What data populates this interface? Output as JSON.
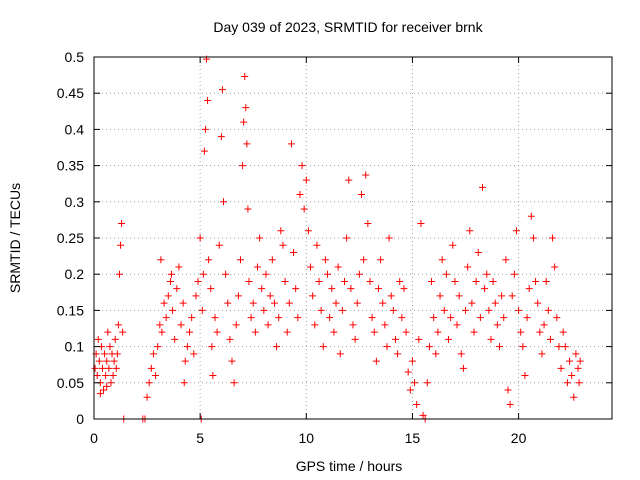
{
  "chart_data": {
    "type": "scatter",
    "title": "Day 039 of 2023, SRMTID for receiver brnk",
    "xlabel": "GPS time / hours",
    "ylabel": "SRMTID / TECUs",
    "xlim": [
      0,
      24.4
    ],
    "ylim": [
      0,
      0.5
    ],
    "xticks": [
      0,
      5,
      10,
      15,
      20
    ],
    "xtick_labels": [
      "0",
      "5",
      "10",
      "15",
      "20"
    ],
    "yticks": [
      0,
      0.05,
      0.1,
      0.15,
      0.2,
      0.25,
      0.3,
      0.35,
      0.4,
      0.45,
      0.5
    ],
    "ytick_labels": [
      "0",
      "0.05",
      "0.1",
      "0.15",
      "0.2",
      "0.25",
      "0.3",
      "0.35",
      "0.4",
      "0.45",
      "0.5"
    ],
    "grid": true,
    "marker": "+",
    "color": "#ff0000",
    "series": [
      {
        "name": "SRMTID",
        "points": [
          [
            0.05,
            0.07
          ],
          [
            0.1,
            0.09
          ],
          [
            0.15,
            0.06
          ],
          [
            0.2,
            0.11
          ],
          [
            0.25,
            0.08
          ],
          [
            0.3,
            0.05
          ],
          [
            0.35,
            0.1
          ],
          [
            0.4,
            0.07
          ],
          [
            0.45,
            0.04
          ],
          [
            0.5,
            0.09
          ],
          [
            0.55,
            0.06
          ],
          [
            0.6,
            0.08
          ],
          [
            0.65,
            0.12
          ],
          [
            0.7,
            0.07
          ],
          [
            0.75,
            0.1
          ],
          [
            0.8,
            0.05
          ],
          [
            0.85,
            0.09
          ],
          [
            0.9,
            0.06
          ],
          [
            0.95,
            0.08
          ],
          [
            1.0,
            0.11
          ],
          [
            1.05,
            0.07
          ],
          [
            1.1,
            0.09
          ],
          [
            1.15,
            0.13
          ],
          [
            1.2,
            0.2
          ],
          [
            1.25,
            0.24
          ],
          [
            1.3,
            0.27
          ],
          [
            1.35,
            0.12
          ],
          [
            1.4,
            0.0
          ],
          [
            0.3,
            0.035
          ],
          [
            0.6,
            0.045
          ],
          [
            2.3,
            0.0
          ],
          [
            2.4,
            0.0
          ],
          [
            2.5,
            0.03
          ],
          [
            2.6,
            0.05
          ],
          [
            2.7,
            0.07
          ],
          [
            2.8,
            0.09
          ],
          [
            2.9,
            0.06
          ],
          [
            3.0,
            0.1
          ],
          [
            3.1,
            0.13
          ],
          [
            3.2,
            0.12
          ],
          [
            3.3,
            0.16
          ],
          [
            3.4,
            0.14
          ],
          [
            3.5,
            0.17
          ],
          [
            3.6,
            0.19
          ],
          [
            3.7,
            0.15
          ],
          [
            3.8,
            0.11
          ],
          [
            3.9,
            0.18
          ],
          [
            4.0,
            0.21
          ],
          [
            4.1,
            0.13
          ],
          [
            4.2,
            0.16
          ],
          [
            4.3,
            0.08
          ],
          [
            4.4,
            0.1
          ],
          [
            4.5,
            0.12
          ],
          [
            4.6,
            0.14
          ],
          [
            4.7,
            0.09
          ],
          [
            4.8,
            0.17
          ],
          [
            4.9,
            0.19
          ],
          [
            3.15,
            0.22
          ],
          [
            3.65,
            0.2
          ],
          [
            4.25,
            0.05
          ],
          [
            5.0,
            0.25
          ],
          [
            5.05,
            0.0
          ],
          [
            5.1,
            0.15
          ],
          [
            5.15,
            0.2
          ],
          [
            5.2,
            0.37
          ],
          [
            5.25,
            0.4
          ],
          [
            5.3,
            0.497
          ],
          [
            5.35,
            0.44
          ],
          [
            5.4,
            0.22
          ],
          [
            5.5,
            0.18
          ],
          [
            5.55,
            0.1
          ],
          [
            5.6,
            0.06
          ],
          [
            5.7,
            0.14
          ],
          [
            5.8,
            0.12
          ],
          [
            5.9,
            0.24
          ],
          [
            6.0,
            0.39
          ],
          [
            6.05,
            0.455
          ],
          [
            6.1,
            0.3
          ],
          [
            6.2,
            0.2
          ],
          [
            6.3,
            0.16
          ],
          [
            6.4,
            0.11
          ],
          [
            6.5,
            0.08
          ],
          [
            6.6,
            0.05
          ],
          [
            6.7,
            0.13
          ],
          [
            6.8,
            0.17
          ],
          [
            6.9,
            0.22
          ],
          [
            7.0,
            0.35
          ],
          [
            7.05,
            0.41
          ],
          [
            7.1,
            0.473
          ],
          [
            7.15,
            0.43
          ],
          [
            7.2,
            0.38
          ],
          [
            7.25,
            0.29
          ],
          [
            7.3,
            0.19
          ],
          [
            7.4,
            0.14
          ],
          [
            7.5,
            0.16
          ],
          [
            7.6,
            0.12
          ],
          [
            7.7,
            0.21
          ],
          [
            7.8,
            0.25
          ],
          [
            7.9,
            0.18
          ],
          [
            8.0,
            0.15
          ],
          [
            8.1,
            0.2
          ],
          [
            8.2,
            0.13
          ],
          [
            8.3,
            0.17
          ],
          [
            8.4,
            0.22
          ],
          [
            8.5,
            0.16
          ],
          [
            8.6,
            0.1
          ],
          [
            8.7,
            0.14
          ],
          [
            8.8,
            0.26
          ],
          [
            8.9,
            0.24
          ],
          [
            9.0,
            0.19
          ],
          [
            9.1,
            0.12
          ],
          [
            9.2,
            0.16
          ],
          [
            9.3,
            0.38
          ],
          [
            9.4,
            0.23
          ],
          [
            9.5,
            0.18
          ],
          [
            9.6,
            0.14
          ],
          [
            9.7,
            0.31
          ],
          [
            9.8,
            0.35
          ],
          [
            9.9,
            0.29
          ],
          [
            10.0,
            0.33
          ],
          [
            10.1,
            0.26
          ],
          [
            10.2,
            0.21
          ],
          [
            10.3,
            0.17
          ],
          [
            10.4,
            0.13
          ],
          [
            10.5,
            0.24
          ],
          [
            10.6,
            0.19
          ],
          [
            10.7,
            0.15
          ],
          [
            10.8,
            0.1
          ],
          [
            10.9,
            0.22
          ],
          [
            11.0,
            0.2
          ],
          [
            11.1,
            0.14
          ],
          [
            11.2,
            0.18
          ],
          [
            11.3,
            0.12
          ],
          [
            11.4,
            0.16
          ],
          [
            11.5,
            0.21
          ],
          [
            11.6,
            0.09
          ],
          [
            11.7,
            0.15
          ],
          [
            11.8,
            0.19
          ],
          [
            11.9,
            0.25
          ],
          [
            12.0,
            0.33
          ],
          [
            12.1,
            0.18
          ],
          [
            12.2,
            0.13
          ],
          [
            12.3,
            0.11
          ],
          [
            12.4,
            0.16
          ],
          [
            12.5,
            0.2
          ],
          [
            12.6,
            0.31
          ],
          [
            12.7,
            0.22
          ],
          [
            12.8,
            0.337
          ],
          [
            12.9,
            0.27
          ],
          [
            13.0,
            0.19
          ],
          [
            13.1,
            0.14
          ],
          [
            13.2,
            0.12
          ],
          [
            13.3,
            0.08
          ],
          [
            13.4,
            0.18
          ],
          [
            13.5,
            0.22
          ],
          [
            13.6,
            0.16
          ],
          [
            13.7,
            0.13
          ],
          [
            13.8,
            0.1
          ],
          [
            13.9,
            0.25
          ],
          [
            14.0,
            0.17
          ],
          [
            14.1,
            0.15
          ],
          [
            14.2,
            0.11
          ],
          [
            14.3,
            0.09
          ],
          [
            14.4,
            0.19
          ],
          [
            14.5,
            0.14
          ],
          [
            14.6,
            0.18
          ],
          [
            14.7,
            0.12
          ],
          [
            14.8,
            0.065
          ],
          [
            14.9,
            0.04
          ],
          [
            15.0,
            0.08
          ],
          [
            15.1,
            0.05
          ],
          [
            15.2,
            0.02
          ],
          [
            15.3,
            0.11
          ],
          [
            15.4,
            0.27
          ],
          [
            15.5,
            0.005
          ],
          [
            15.6,
            0.0
          ],
          [
            15.7,
            0.05
          ],
          [
            15.8,
            0.1
          ],
          [
            15.9,
            0.19
          ],
          [
            16.0,
            0.14
          ],
          [
            16.1,
            0.09
          ],
          [
            16.2,
            0.12
          ],
          [
            16.3,
            0.17
          ],
          [
            16.4,
            0.22
          ],
          [
            16.5,
            0.15
          ],
          [
            16.6,
            0.2
          ],
          [
            16.7,
            0.11
          ],
          [
            16.8,
            0.14
          ],
          [
            16.9,
            0.24
          ],
          [
            17.0,
            0.19
          ],
          [
            17.1,
            0.13
          ],
          [
            17.2,
            0.17
          ],
          [
            17.3,
            0.09
          ],
          [
            17.4,
            0.07
          ],
          [
            17.5,
            0.15
          ],
          [
            17.6,
            0.21
          ],
          [
            17.7,
            0.26
          ],
          [
            17.8,
            0.16
          ],
          [
            17.9,
            0.12
          ],
          [
            18.0,
            0.19
          ],
          [
            18.1,
            0.23
          ],
          [
            18.2,
            0.14
          ],
          [
            18.3,
            0.32
          ],
          [
            18.4,
            0.18
          ],
          [
            18.5,
            0.2
          ],
          [
            18.6,
            0.15
          ],
          [
            18.7,
            0.11
          ],
          [
            18.8,
            0.19
          ],
          [
            18.9,
            0.16
          ],
          [
            19.0,
            0.13
          ],
          [
            19.1,
            0.1
          ],
          [
            19.2,
            0.17
          ],
          [
            19.3,
            0.14
          ],
          [
            19.4,
            0.22
          ],
          [
            19.5,
            0.04
          ],
          [
            19.6,
            0.02
          ],
          [
            19.7,
            0.17
          ],
          [
            19.8,
            0.2
          ],
          [
            19.9,
            0.26
          ],
          [
            20.0,
            0.15
          ],
          [
            20.1,
            0.12
          ],
          [
            20.2,
            0.1
          ],
          [
            20.3,
            0.06
          ],
          [
            20.4,
            0.14
          ],
          [
            20.5,
            0.18
          ],
          [
            20.6,
            0.28
          ],
          [
            20.7,
            0.25
          ],
          [
            20.8,
            0.19
          ],
          [
            20.9,
            0.16
          ],
          [
            21.0,
            0.12
          ],
          [
            21.1,
            0.09
          ],
          [
            21.2,
            0.13
          ],
          [
            21.3,
            0.19
          ],
          [
            21.4,
            0.15
          ],
          [
            21.5,
            0.11
          ],
          [
            21.6,
            0.25
          ],
          [
            21.7,
            0.21
          ],
          [
            21.8,
            0.14
          ],
          [
            21.9,
            0.1
          ],
          [
            22.0,
            0.07
          ],
          [
            22.1,
            0.12
          ],
          [
            22.2,
            0.1
          ],
          [
            22.3,
            0.05
          ],
          [
            22.4,
            0.08
          ],
          [
            22.5,
            0.06
          ],
          [
            22.6,
            0.03
          ],
          [
            22.7,
            0.09
          ],
          [
            22.8,
            0.07
          ],
          [
            22.85,
            0.05
          ],
          [
            22.9,
            0.08
          ]
        ]
      }
    ]
  }
}
